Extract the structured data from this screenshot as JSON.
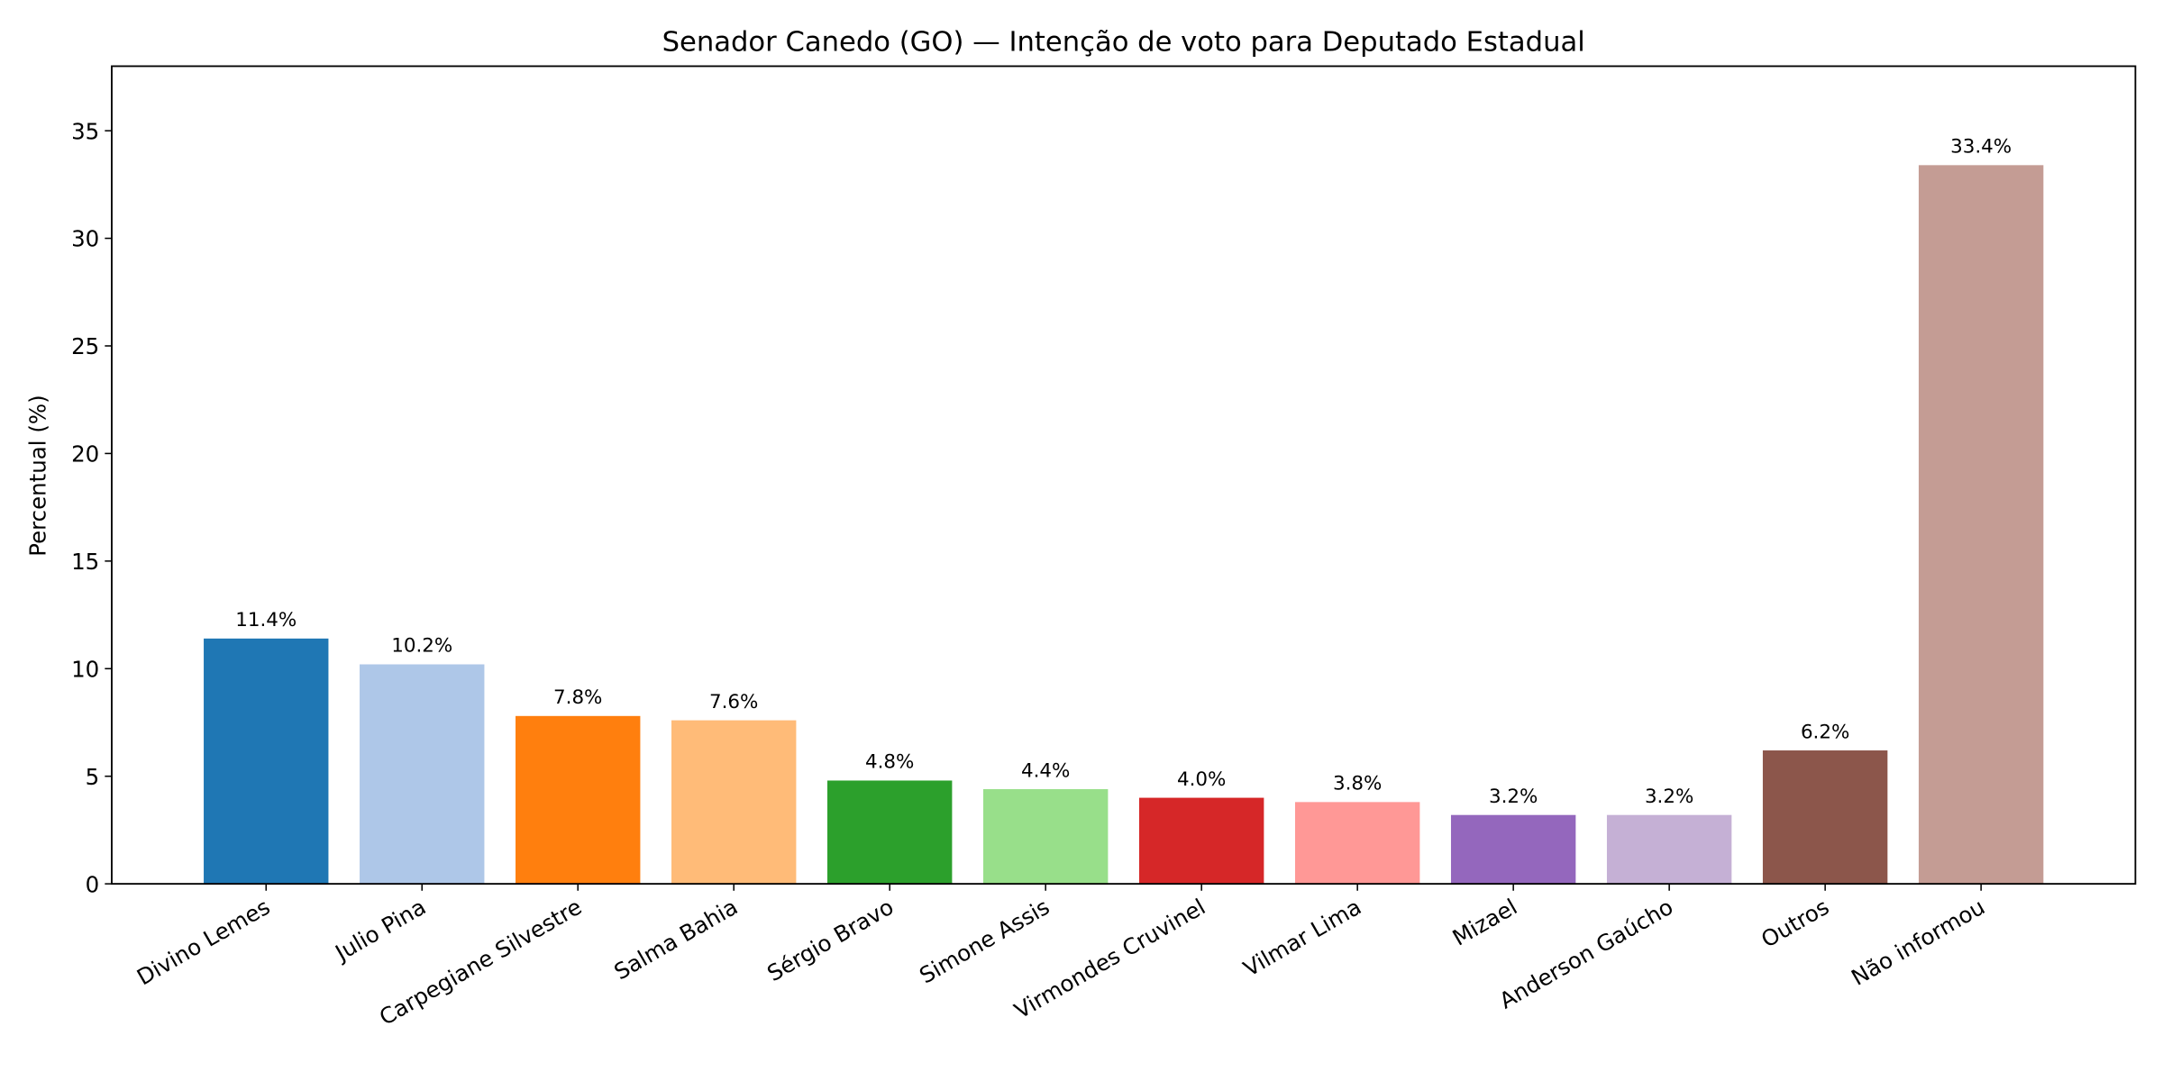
{
  "chart_data": {
    "type": "bar",
    "title": "Senador Canedo (GO) — Intenção de voto para Deputado Estadual",
    "xlabel": "",
    "ylabel": "Percentual (%)",
    "ylim": [
      0,
      38
    ],
    "xlim": [
      -0.99,
      11.99
    ],
    "yticks": [
      0,
      5,
      10,
      15,
      20,
      25,
      30,
      35
    ],
    "grid": false,
    "categories": [
      "Divino Lemes",
      "Julio Pina",
      "Carpegiane Silvestre",
      "Salma Bahia",
      "Sérgio Bravo",
      "Simone Assis",
      "Virmondes Cruvinel",
      "Vilmar Lima",
      "Mizael",
      "Anderson Gaúcho",
      "Outros",
      "Não informou"
    ],
    "values": [
      11.4,
      10.2,
      7.8,
      7.6,
      4.8,
      4.4,
      4.0,
      3.8,
      3.2,
      3.2,
      6.2,
      33.4
    ],
    "data_labels": [
      "11.4%",
      "10.2%",
      "7.8%",
      "7.6%",
      "4.8%",
      "4.4%",
      "4.0%",
      "3.8%",
      "3.2%",
      "3.2%",
      "6.2%",
      "33.4%"
    ],
    "colors": [
      "#1f77b4",
      "#aec7e8",
      "#ff7f0e",
      "#ffbb78",
      "#2ca02c",
      "#98df8a",
      "#d62728",
      "#ff9896",
      "#9467bd",
      "#c5b0d5",
      "#8c564b",
      "#c49c94"
    ]
  }
}
